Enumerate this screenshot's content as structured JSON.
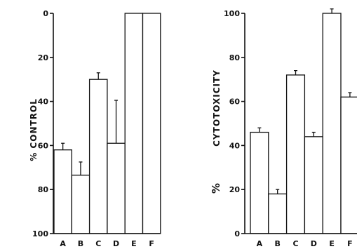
{
  "chart_data": [
    {
      "type": "bar",
      "ylabel": "% CONTROL",
      "ylim": [
        0,
        100
      ],
      "inverted_y": true,
      "yticks": [
        "0",
        "20",
        "40",
        "60",
        "80",
        "100"
      ],
      "categories": [
        "A",
        "B",
        "C",
        "D",
        "E",
        "F"
      ],
      "values": [
        62,
        73.5,
        30,
        59,
        0,
        0
      ],
      "error_tops": [
        59,
        67.5,
        27,
        39.5,
        null,
        null
      ]
    },
    {
      "type": "bar",
      "ylabel_top": "CYTOTOXICITY",
      "ylabel_bottom": "%",
      "ylim": [
        0,
        100
      ],
      "yticks": [
        "0",
        "20",
        "40",
        "60",
        "80",
        "100"
      ],
      "categories": [
        "A",
        "B",
        "C",
        "D",
        "E",
        "F"
      ],
      "values": [
        46,
        18,
        72,
        44,
        100,
        62
      ],
      "error_tops": [
        48,
        20,
        74,
        46,
        102,
        64
      ]
    }
  ]
}
